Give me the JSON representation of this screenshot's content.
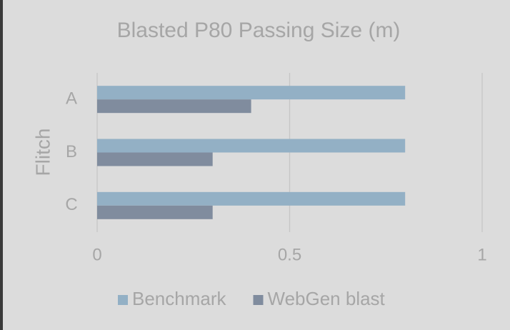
{
  "chart_data": {
    "type": "bar",
    "orientation": "horizontal",
    "title": "Blasted P80 Passing Size (m)",
    "y_label": "Flitch",
    "categories": [
      "A",
      "B",
      "C"
    ],
    "series": [
      {
        "name": "Benchmark",
        "color": "#93b0c5",
        "values": [
          0.8,
          0.8,
          0.8
        ]
      },
      {
        "name": "WebGen blast",
        "color": "#808c9e",
        "values": [
          0.4,
          0.3,
          0.3
        ]
      }
    ],
    "xlim": [
      0,
      1
    ],
    "xticks": [
      0,
      0.5,
      1
    ],
    "grid": true,
    "legend": "bottom"
  }
}
